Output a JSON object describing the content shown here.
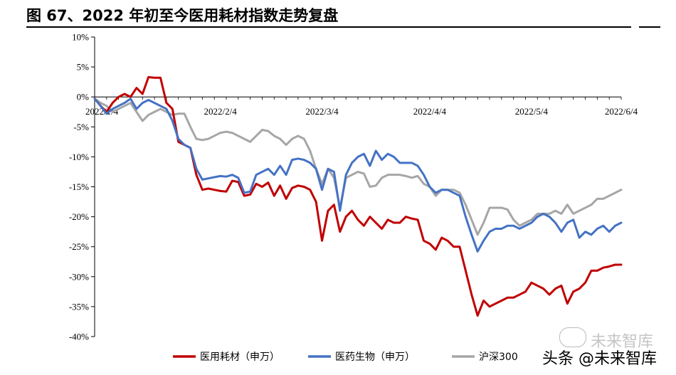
{
  "title": "图 67、2022 年初至今医用耗材指数走势复盘",
  "chart_data": {
    "type": "line",
    "y_ticks": [
      "10%",
      "5%",
      "0%",
      "-5%",
      "-10%",
      "-15%",
      "-20%",
      "-25%",
      "-30%",
      "-35%",
      "-40%"
    ],
    "ylim": [
      -40,
      10
    ],
    "x_ticks": [
      {
        "label": "2022/1/4",
        "t": 0
      },
      {
        "label": "2022/2/4",
        "t": 21
      },
      {
        "label": "2022/3/4",
        "t": 38
      },
      {
        "label": "2022/4/4",
        "t": 56
      },
      {
        "label": "2022/5/4",
        "t": 73
      },
      {
        "label": "2022/6/4",
        "t": 88
      }
    ],
    "x_max": 88,
    "series": [
      {
        "name": "医用耗材（申万）",
        "color": "#c00000",
        "values": [
          -0.3,
          -1.5,
          -2.5,
          -1.0,
          0.0,
          0.5,
          0.0,
          1.5,
          0.5,
          3.3,
          3.2,
          3.2,
          -1.0,
          -2.0,
          -7.5,
          -8.0,
          -8.5,
          -13.0,
          -15.5,
          -15.3,
          -15.5,
          -15.7,
          -15.8,
          -14.0,
          -14.2,
          -16.5,
          -16.3,
          -14.5,
          -15.0,
          -14.3,
          -16.5,
          -14.8,
          -17.0,
          -15.2,
          -14.8,
          -15.0,
          -15.5,
          -17.5,
          -24.0,
          -19.0,
          -18.0,
          -22.5,
          -20.0,
          -19.0,
          -20.5,
          -21.5,
          -20.0,
          -21.0,
          -22.0,
          -20.5,
          -21.0,
          -21.0,
          -20.0,
          -20.3,
          -20.5,
          -24.0,
          -24.5,
          -25.5,
          -23.5,
          -24.0,
          -25.0,
          -25.0,
          -29.0,
          -33.0,
          -36.5,
          -34.0,
          -35.0,
          -34.5,
          -34.0,
          -33.5,
          -33.5,
          -33.0,
          -32.5,
          -31.0,
          -31.5,
          -32.0,
          -33.0,
          -32.0,
          -31.5,
          -34.5,
          -32.5,
          -32.0,
          -31.0,
          -29.0,
          -29.0,
          -28.5,
          -28.3,
          -28.0,
          -28.0
        ],
        "smooth": false
      },
      {
        "name": "医药生物（申万）",
        "color": "#4472c4",
        "values": [
          -0.3,
          -1.5,
          -2.8,
          -2.0,
          -1.5,
          -1.0,
          -0.3,
          -2.0,
          -1.0,
          -0.5,
          -1.0,
          -1.5,
          -2.0,
          -4.0,
          -7.0,
          -8.0,
          -8.5,
          -12.0,
          -13.8,
          -13.6,
          -13.4,
          -13.2,
          -13.3,
          -13.0,
          -13.5,
          -16.0,
          -15.8,
          -13.0,
          -12.5,
          -12.0,
          -13.0,
          -11.5,
          -13.0,
          -10.5,
          -10.3,
          -10.5,
          -11.0,
          -12.0,
          -15.5,
          -12.0,
          -12.5,
          -19.0,
          -13.0,
          -11.0,
          -10.0,
          -9.5,
          -11.5,
          -9.0,
          -10.5,
          -9.5,
          -10.0,
          -11.0,
          -11.0,
          -11.0,
          -11.5,
          -13.0,
          -15.0,
          -16.0,
          -15.5,
          -15.5,
          -16.0,
          -16.5,
          -20.0,
          -23.0,
          -25.8,
          -24.0,
          -22.5,
          -22.0,
          -22.0,
          -21.5,
          -21.5,
          -22.0,
          -21.5,
          -21.0,
          -20.0,
          -19.5,
          -20.0,
          -21.0,
          -22.5,
          -21.0,
          -20.5,
          -23.5,
          -22.5,
          -23.0,
          -22.0,
          -21.5,
          -22.5,
          -21.5,
          -21.0
        ],
        "smooth": false
      },
      {
        "name": "沪深300",
        "color": "#a6a6a6",
        "values": [
          -0.3,
          -1.0,
          -1.5,
          -2.5,
          -2.0,
          -1.5,
          -1.0,
          -2.5,
          -4.0,
          -3.0,
          -2.5,
          -2.0,
          -2.5,
          -3.0,
          -2.8,
          -2.8,
          -5.0,
          -7.0,
          -7.2,
          -7.0,
          -6.5,
          -6.0,
          -5.8,
          -6.0,
          -6.5,
          -7.0,
          -7.5,
          -6.5,
          -5.5,
          -5.7,
          -6.5,
          -7.0,
          -8.0,
          -7.0,
          -6.5,
          -7.0,
          -9.0,
          -12.0,
          -14.5,
          -12.0,
          -13.5,
          -18.5,
          -13.5,
          -13.0,
          -12.5,
          -12.8,
          -15.0,
          -14.8,
          -13.5,
          -13.0,
          -13.0,
          -13.0,
          -13.2,
          -13.5,
          -13.2,
          -14.5,
          -15.0,
          -16.5,
          -15.5,
          -15.5,
          -15.5,
          -16.0,
          -18.0,
          -20.5,
          -23.0,
          -21.0,
          -18.5,
          -18.5,
          -18.5,
          -18.8,
          -20.5,
          -21.5,
          -21.0,
          -20.5,
          -19.5,
          -19.5,
          -19.5,
          -19.0,
          -19.5,
          -18.0,
          -19.5,
          -19.0,
          -18.5,
          -18.0,
          -17.0,
          -17.0,
          -16.5,
          -16.0,
          -15.5
        ],
        "smooth": false
      }
    ]
  },
  "watermark": {
    "name": "未来智库",
    "text": "头条 @未来智库"
  }
}
